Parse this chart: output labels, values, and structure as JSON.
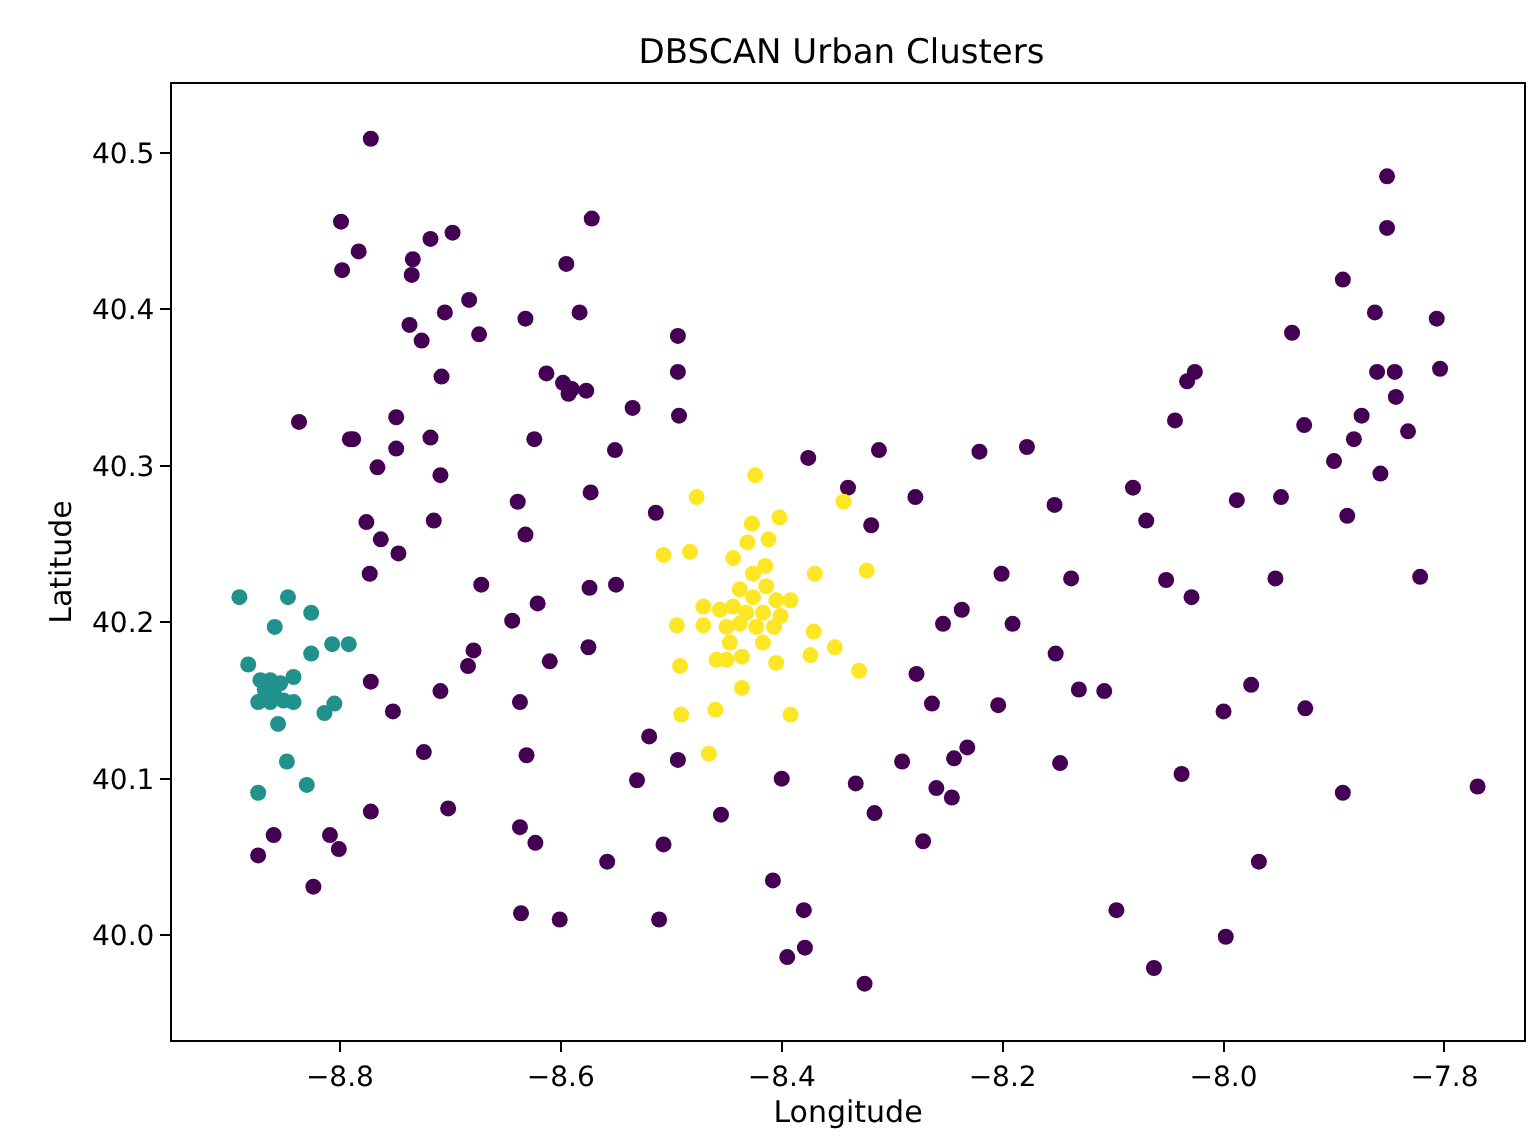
{
  "chart_data": {
    "type": "scatter",
    "title": "DBSCAN Urban Clusters",
    "xlabel": "Longitude",
    "ylabel": "Latitude",
    "marker": "circle",
    "xlim": [
      -8.952,
      -7.728
    ],
    "ylim": [
      39.933,
      40.544
    ],
    "xticks": [
      {
        "value": -8.8,
        "label": "−8.8"
      },
      {
        "value": -8.6,
        "label": "−8.6"
      },
      {
        "value": -8.4,
        "label": "−8.4"
      },
      {
        "value": -8.2,
        "label": "−8.2"
      },
      {
        "value": -8.0,
        "label": "−8.0"
      },
      {
        "value": -7.8,
        "label": "−7.8"
      }
    ],
    "yticks": [
      {
        "value": 40.0,
        "label": "40.0"
      },
      {
        "value": 40.1,
        "label": "40.1"
      },
      {
        "value": 40.2,
        "label": "40.2"
      },
      {
        "value": 40.3,
        "label": "40.3"
      },
      {
        "value": 40.4,
        "label": "40.4"
      },
      {
        "value": 40.5,
        "label": "40.5"
      }
    ],
    "series": [
      {
        "color": "#440154",
        "x": [
          -8.772,
          -8.799,
          -8.783,
          -8.798,
          -8.718,
          -8.698,
          -8.734,
          -8.735,
          -8.572,
          -8.595,
          -8.683,
          -8.705,
          -8.737,
          -8.726,
          -8.674,
          -8.632,
          -8.583,
          -8.708,
          -8.613,
          -8.598,
          -8.59,
          -8.593,
          -8.577,
          -8.535,
          -8.837,
          -8.791,
          -8.788,
          -8.749,
          -8.749,
          -8.718,
          -8.766,
          -8.709,
          -8.624,
          -8.551,
          -8.639,
          -8.573,
          -8.776,
          -8.715,
          -8.763,
          -8.747,
          -8.632,
          -8.514,
          -8.773,
          -8.672,
          -8.621,
          -8.644,
          -8.574,
          -8.55,
          -8.679,
          -8.684,
          -8.61,
          -8.575,
          -8.772,
          -8.709,
          -8.752,
          -8.637,
          -8.724,
          -8.631,
          -8.52,
          -8.531,
          -8.772,
          -8.702,
          -8.86,
          -8.874,
          -8.809,
          -8.801,
          -8.824,
          -8.637,
          -8.623,
          -8.558,
          -8.507,
          -8.636,
          -8.601,
          -8.511,
          -8.494,
          -8.494,
          -8.493,
          -8.376,
          -8.312,
          -8.34,
          -8.279,
          -8.319,
          -8.221,
          -8.178,
          -8.153,
          -8.201,
          -8.138,
          -8.237,
          -8.254,
          -8.191,
          -8.152,
          -8.278,
          -8.264,
          -8.204,
          -8.494,
          -8.455,
          -8.4,
          -8.408,
          -8.38,
          -8.395,
          -8.379,
          -8.325,
          -8.333,
          -8.316,
          -8.291,
          -8.26,
          -8.244,
          -8.232,
          -8.246,
          -8.272,
          -8.148,
          -7.852,
          -7.852,
          -7.892,
          -7.863,
          -7.807,
          -7.938,
          -7.861,
          -7.845,
          -7.804,
          -7.844,
          -8.026,
          -8.033,
          -8.044,
          -7.927,
          -7.875,
          -7.882,
          -7.9,
          -7.833,
          -7.858,
          -8.082,
          -8.07,
          -7.988,
          -7.948,
          -7.888,
          -8.052,
          -8.029,
          -7.953,
          -7.822,
          -8.131,
          -8.108,
          -7.975,
          -8.0,
          -7.926,
          -8.038,
          -7.892,
          -7.77,
          -7.968,
          -8.097,
          -7.998,
          -8.063
        ],
        "values": [
          40.509,
          40.456,
          40.437,
          40.425,
          40.445,
          40.449,
          40.432,
          40.422,
          40.458,
          40.429,
          40.406,
          40.398,
          40.39,
          40.38,
          40.384,
          40.394,
          40.398,
          40.357,
          40.359,
          40.353,
          40.349,
          40.346,
          40.348,
          40.337,
          40.328,
          40.317,
          40.317,
          40.331,
          40.311,
          40.318,
          40.299,
          40.294,
          40.317,
          40.31,
          40.277,
          40.283,
          40.264,
          40.265,
          40.253,
          40.244,
          40.256,
          40.27,
          40.231,
          40.224,
          40.212,
          40.201,
          40.222,
          40.224,
          40.182,
          40.172,
          40.175,
          40.184,
          40.162,
          40.156,
          40.143,
          40.149,
          40.117,
          40.115,
          40.127,
          40.099,
          40.079,
          40.081,
          40.064,
          40.051,
          40.064,
          40.055,
          40.031,
          40.069,
          40.059,
          40.047,
          40.058,
          40.014,
          40.01,
          40.01,
          40.383,
          40.36,
          40.332,
          40.305,
          40.31,
          40.286,
          40.28,
          40.262,
          40.309,
          40.312,
          40.275,
          40.231,
          40.228,
          40.208,
          40.199,
          40.199,
          40.18,
          40.167,
          40.148,
          40.147,
          40.112,
          40.077,
          40.1,
          40.035,
          40.016,
          39.986,
          39.992,
          39.969,
          40.097,
          40.078,
          40.111,
          40.094,
          40.113,
          40.12,
          40.088,
          40.06,
          40.11,
          40.485,
          40.452,
          40.419,
          40.398,
          40.394,
          40.385,
          40.36,
          40.36,
          40.362,
          40.344,
          40.36,
          40.354,
          40.329,
          40.326,
          40.332,
          40.317,
          40.303,
          40.322,
          40.295,
          40.286,
          40.265,
          40.278,
          40.28,
          40.268,
          40.227,
          40.216,
          40.228,
          40.229,
          40.157,
          40.156,
          40.16,
          40.143,
          40.145,
          40.103,
          40.091,
          40.095,
          40.047,
          40.016,
          39.999,
          39.979
        ]
      },
      {
        "color": "#21918c",
        "x": [
          -8.891,
          -8.847,
          -8.826,
          -8.859,
          -8.826,
          -8.807,
          -8.792,
          -8.883,
          -8.842,
          -8.872,
          -8.863,
          -8.854,
          -8.874,
          -8.863,
          -8.851,
          -8.842,
          -8.86,
          -8.868,
          -8.805,
          -8.814,
          -8.856,
          -8.848,
          -8.83,
          -8.874
        ],
        "values": [
          40.216,
          40.216,
          40.206,
          40.197,
          40.18,
          40.186,
          40.186,
          40.173,
          40.165,
          40.163,
          40.163,
          40.161,
          40.149,
          40.149,
          40.15,
          40.149,
          40.155,
          40.157,
          40.148,
          40.142,
          40.135,
          40.111,
          40.096,
          40.091
        ]
      },
      {
        "color": "#fde725",
        "x": [
          -8.424,
          -8.477,
          -8.344,
          -8.402,
          -8.427,
          -8.412,
          -8.431,
          -8.507,
          -8.483,
          -8.444,
          -8.415,
          -8.37,
          -8.323,
          -8.426,
          -8.471,
          -8.495,
          -8.471,
          -8.456,
          -8.438,
          -8.426,
          -8.414,
          -8.405,
          -8.392,
          -8.444,
          -8.432,
          -8.417,
          -8.401,
          -8.45,
          -8.438,
          -8.423,
          -8.407,
          -8.447,
          -8.417,
          -8.371,
          -8.459,
          -8.45,
          -8.436,
          -8.405,
          -8.374,
          -8.352,
          -8.492,
          -8.33,
          -8.436,
          -8.491,
          -8.46,
          -8.392,
          -8.466
        ],
        "values": [
          40.294,
          40.28,
          40.277,
          40.267,
          40.263,
          40.253,
          40.251,
          40.243,
          40.245,
          40.241,
          40.236,
          40.231,
          40.233,
          40.231,
          40.21,
          40.198,
          40.198,
          40.208,
          40.221,
          40.216,
          40.223,
          40.214,
          40.214,
          40.21,
          40.206,
          40.206,
          40.204,
          40.197,
          40.199,
          40.197,
          40.197,
          40.187,
          40.187,
          40.194,
          40.176,
          40.176,
          40.178,
          40.174,
          40.179,
          40.184,
          40.172,
          40.169,
          40.158,
          40.141,
          40.144,
          40.141,
          40.116
        ]
      }
    ]
  }
}
